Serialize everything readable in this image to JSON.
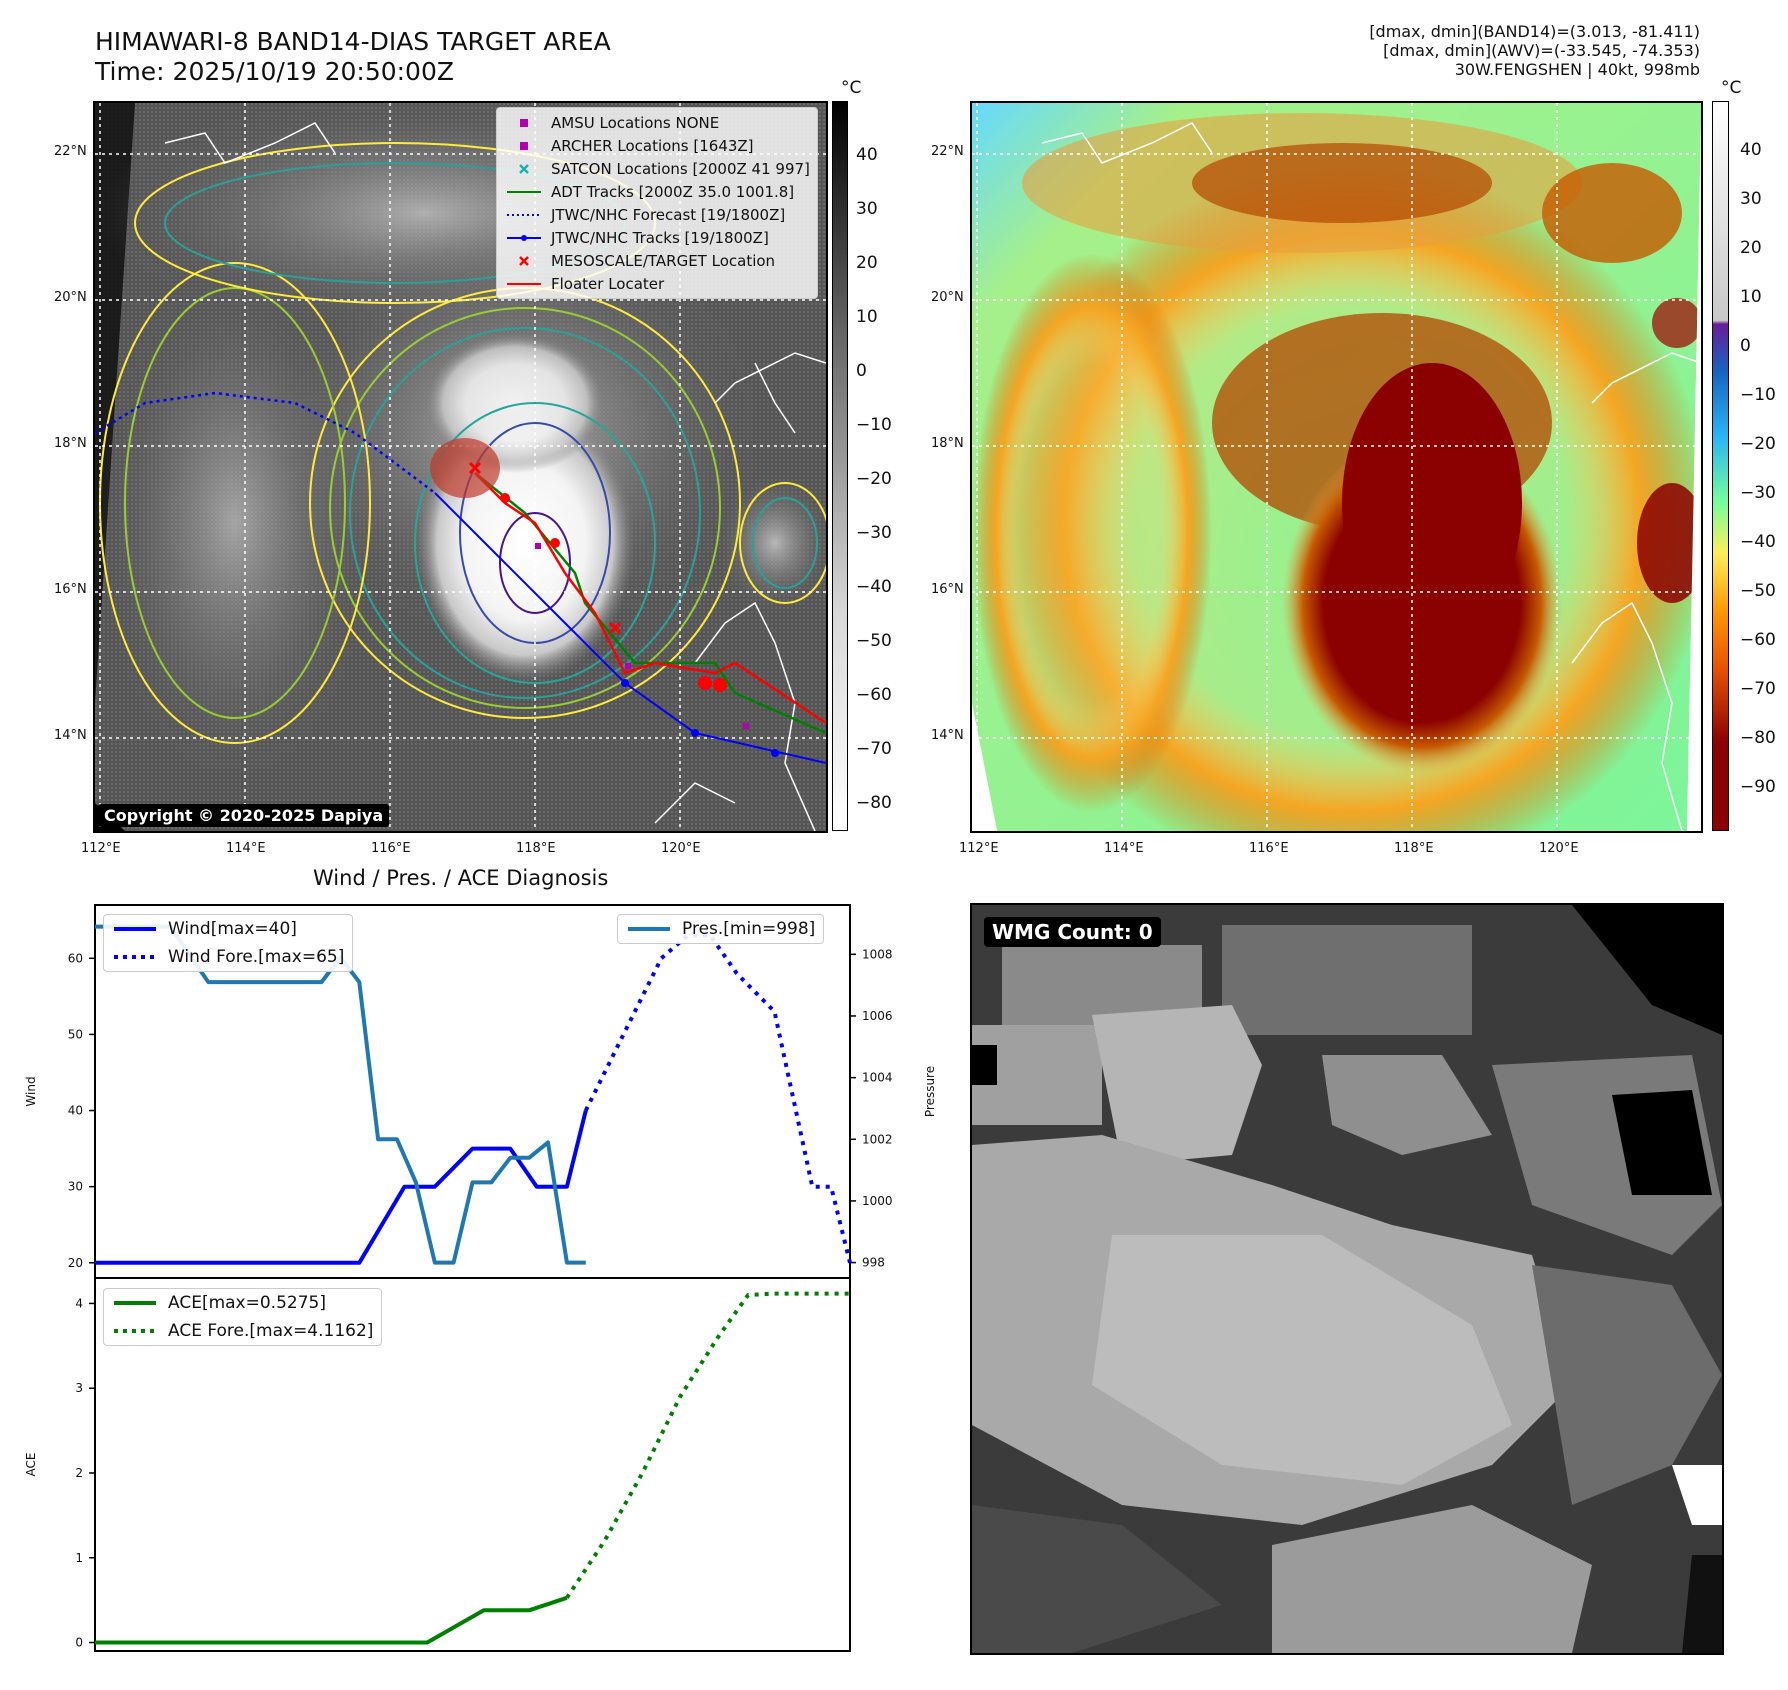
{
  "header": {
    "title_line1": "HIMAWARI-8 BAND14-DIAS TARGET AREA",
    "title_line2": "Time: 2025/10/19 20:50:00Z",
    "info_line1": "[dmax, dmin](BAND14)=(3.013, -81.411)",
    "info_line2": "[dmax, dmin](AWV)=(-33.545, -74.353)",
    "info_line3": "30W.FENGSHEN | 40kt, 998mb"
  },
  "map_axes": {
    "lat_labels": [
      "22°N",
      "20°N",
      "18°N",
      "16°N",
      "14°N"
    ],
    "lon_labels": [
      "112°E",
      "114°E",
      "116°E",
      "118°E",
      "120°E"
    ]
  },
  "ir_panel": {
    "colorbar_unit": "°C",
    "colorbar_ticks": [
      "40",
      "30",
      "20",
      "10",
      "0",
      "−10",
      "−20",
      "−30",
      "−40",
      "−50",
      "−60",
      "−70",
      "−80"
    ],
    "copyright": "Copyright © 2020-2025 Dapiya",
    "legend": [
      {
        "label": "AMSU Locations NONE",
        "symbol": "square",
        "color": "#b300b3"
      },
      {
        "label": "ARCHER Locations [1643Z]",
        "symbol": "square",
        "color": "#b300b3"
      },
      {
        "label": "SATCON Locations [2000Z 41 997]",
        "symbol": "x",
        "color": "#17b3b3"
      },
      {
        "label": "ADT Tracks [2000Z 35.0 1001.8]",
        "symbol": "line",
        "color": "#008000"
      },
      {
        "label": "JTWC/NHC Forecast [19/1800Z]",
        "symbol": "dotted",
        "color": "#0000ff"
      },
      {
        "label": "JTWC/NHC Tracks [19/1800Z]",
        "symbol": "line-dot",
        "color": "#0000ff"
      },
      {
        "label": "MESOSCALE/TARGET Location",
        "symbol": "x",
        "color": "#ff0000"
      },
      {
        "label": "Floater Locater",
        "symbol": "line",
        "color": "#ff0000"
      }
    ]
  },
  "awv_panel": {
    "colorbar_unit": "°C",
    "colorbar_ticks": [
      "40",
      "30",
      "20",
      "10",
      "0",
      "−10",
      "−20",
      "−30",
      "−40",
      "−50",
      "−60",
      "−70",
      "−80",
      "−90"
    ]
  },
  "wmg_panel": {
    "badge": "WMG Count: 0"
  },
  "chart_data": [
    {
      "type": "line",
      "title": "Wind / Pres. / ACE Diagnosis",
      "ylabel": "Wind",
      "ylabel_right": "Pressure",
      "ylim": [
        18,
        67
      ],
      "ylim_right": [
        997.5,
        1009.6
      ],
      "yticks": [
        20,
        30,
        40,
        50,
        60
      ],
      "yticks_right": [
        998,
        1000,
        1002,
        1004,
        1006,
        1008
      ],
      "xlim": [
        0,
        20
      ],
      "series": [
        {
          "name": "Wind[max=40]",
          "style": "solid",
          "color": "#0000ff",
          "x": [
            0,
            7,
            8.2,
            9,
            10,
            11,
            11.7,
            12.5,
            13
          ],
          "values": [
            20,
            20,
            30,
            30,
            35,
            35,
            30,
            30,
            40
          ]
        },
        {
          "name": "Wind Fore.[max=65]",
          "style": "dotted",
          "color": "#0000ff",
          "x": [
            13,
            14,
            15,
            15.7,
            16.3,
            17,
            18,
            19,
            19.5,
            20
          ],
          "values": [
            40,
            50,
            60,
            63,
            63,
            58,
            53,
            30,
            30,
            20
          ]
        },
        {
          "name": "Pres.[min=998]",
          "style": "solid",
          "color": "#1f77b4",
          "axis": "right",
          "x": [
            0,
            2,
            3,
            6,
            6.5,
            7,
            7.5,
            8,
            8.5,
            9,
            9.5,
            10,
            10.5,
            11,
            11.5,
            12,
            12.5,
            13
          ],
          "values": [
            1008.9,
            1008.9,
            1007.1,
            1007.1,
            1007.9,
            1007.1,
            1002,
            1002,
            1000.6,
            998,
            998,
            1000.6,
            1000.6,
            1001.4,
            1001.4,
            1001.9,
            998,
            998
          ]
        }
      ]
    },
    {
      "type": "line",
      "ylabel": "ACE",
      "ylim": [
        -0.1,
        4.3
      ],
      "yticks": [
        0,
        1,
        2,
        3,
        4
      ],
      "xlim": [
        0,
        20
      ],
      "series": [
        {
          "name": "ACE[max=0.5275]",
          "style": "solid",
          "color": "#008000",
          "x": [
            0,
            8.8,
            10.3,
            11.5,
            12.5
          ],
          "values": [
            0,
            0,
            0.38,
            0.38,
            0.5275
          ]
        },
        {
          "name": "ACE Fore.[max=4.1162]",
          "style": "dotted",
          "color": "#008000",
          "x": [
            12.5,
            13.5,
            14.5,
            15.5,
            16.5,
            17.3,
            18,
            19,
            20
          ],
          "values": [
            0.5275,
            1.2,
            2.0,
            2.9,
            3.6,
            4.1,
            4.1162,
            4.1162,
            4.1162
          ]
        }
      ]
    }
  ]
}
